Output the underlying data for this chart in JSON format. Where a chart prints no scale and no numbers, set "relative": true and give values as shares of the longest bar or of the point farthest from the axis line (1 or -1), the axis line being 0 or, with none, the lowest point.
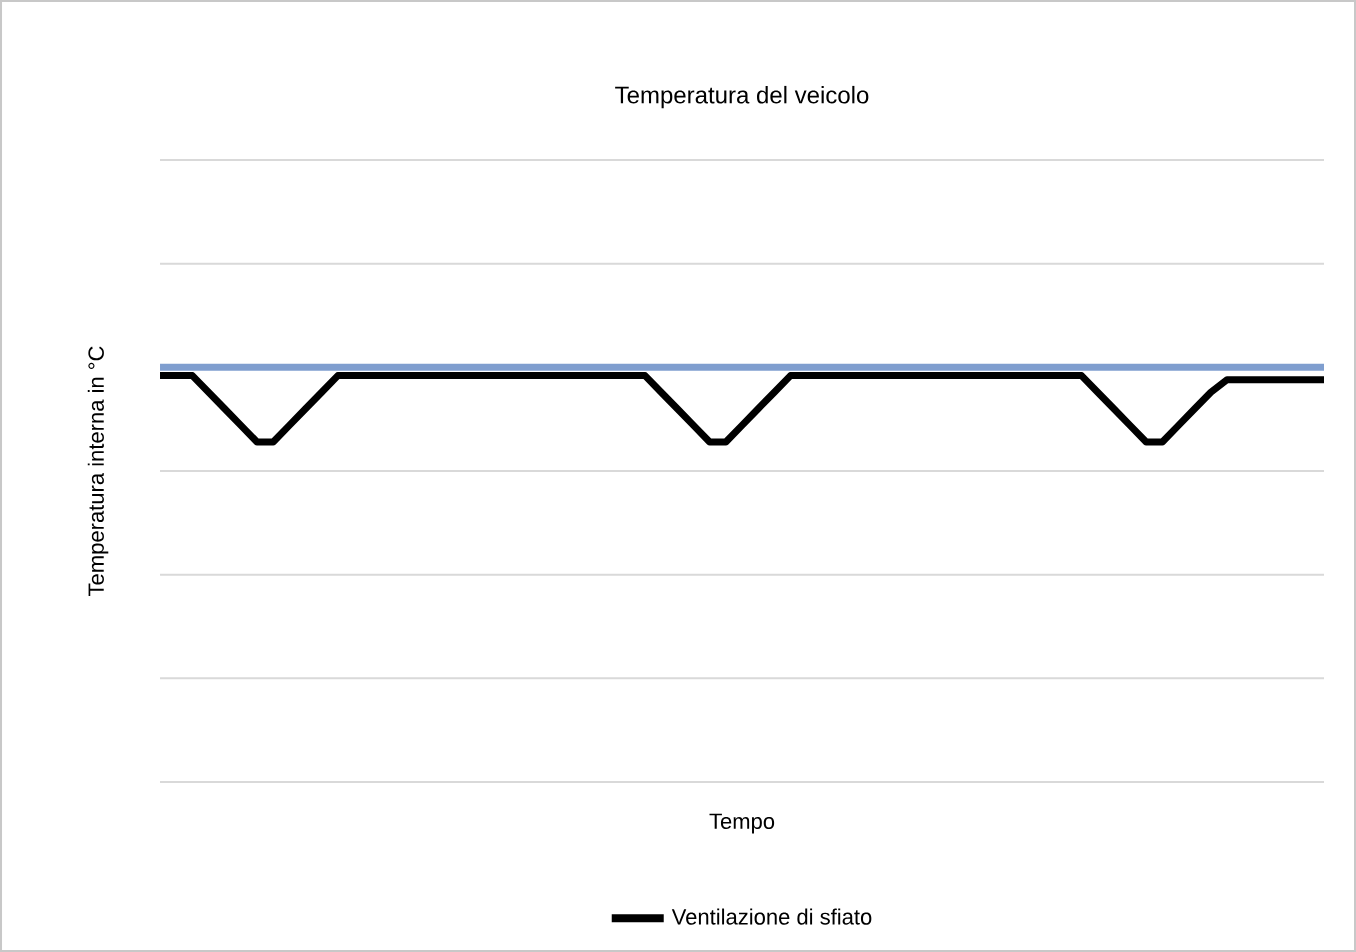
{
  "chart_data": {
    "type": "line",
    "title": "Temperatura del veicolo",
    "xlabel": "Tempo",
    "ylabel": "Temperatura interna in °C",
    "relative": true,
    "grid": "y",
    "legend": "bottom",
    "line_style": "solid",
    "marker": "none",
    "categories": [
      null,
      null,
      null,
      null,
      null,
      null,
      null,
      null,
      null,
      null,
      null,
      null,
      null,
      null,
      null,
      null,
      null,
      null,
      null,
      null,
      null,
      null,
      null,
      null,
      null,
      null,
      null,
      null,
      null,
      null,
      null,
      null,
      null,
      null,
      null,
      null,
      null,
      null,
      null,
      null,
      null,
      null,
      null,
      null,
      null,
      null,
      null,
      null,
      null,
      null,
      null,
      null,
      null,
      null,
      null,
      null,
      null,
      null,
      null,
      null,
      null,
      null,
      null,
      null,
      null,
      null,
      null,
      null,
      null,
      null,
      null,
      null,
      null
    ],
    "series": [
      {
        "color": "#7f9ecf",
        "values": [
          1,
          1,
          1,
          1,
          1,
          1,
          1,
          1,
          1,
          1,
          1,
          1,
          1,
          1,
          1,
          1,
          1,
          1,
          1,
          1,
          1,
          1,
          1,
          1,
          1,
          1,
          1,
          1,
          1,
          1,
          1,
          1,
          1,
          1,
          1,
          1,
          1,
          1,
          1,
          1,
          1,
          1,
          1,
          1,
          1,
          1,
          1,
          1,
          1,
          1,
          1,
          1,
          1,
          1,
          1,
          1,
          1,
          1,
          1,
          1,
          1,
          1,
          1,
          1,
          1,
          1,
          1,
          1,
          1,
          1,
          1,
          1,
          1
        ]
      },
      {
        "name": "Ventilazione di sfiato",
        "color": "#000000",
        "values": [
          0.98,
          0.98,
          0.98,
          0.94,
          0.9,
          0.86,
          0.82,
          0.82,
          0.86,
          0.9,
          0.94,
          0.98,
          0.98,
          0.98,
          0.98,
          0.98,
          0.98,
          0.98,
          0.98,
          0.98,
          0.98,
          0.98,
          0.98,
          0.98,
          0.98,
          0.98,
          0.98,
          0.98,
          0.98,
          0.98,
          0.98,
          0.94,
          0.9,
          0.86,
          0.82,
          0.82,
          0.86,
          0.9,
          0.94,
          0.98,
          0.98,
          0.98,
          0.98,
          0.98,
          0.98,
          0.98,
          0.98,
          0.98,
          0.98,
          0.98,
          0.98,
          0.98,
          0.98,
          0.98,
          0.98,
          0.98,
          0.98,
          0.98,
          0.94,
          0.9,
          0.86,
          0.82,
          0.82,
          0.86,
          0.9,
          0.94,
          0.97,
          0.97,
          0.97,
          0.97,
          0.97,
          0.97,
          0.97
        ]
      }
    ]
  }
}
